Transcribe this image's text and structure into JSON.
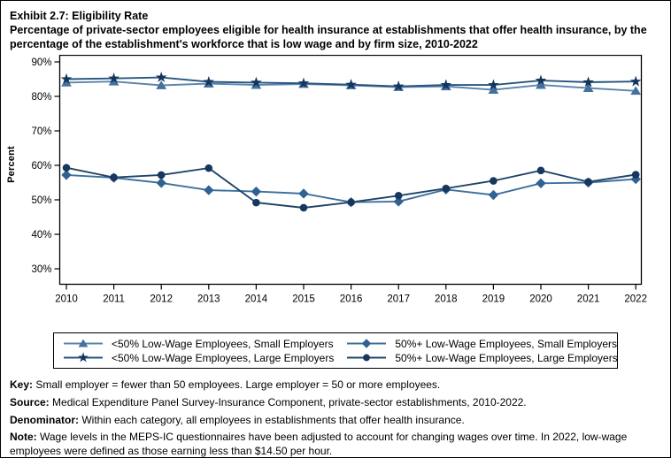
{
  "title": "Exhibit 2.7: Eligibility Rate",
  "subtitle": "Percentage of private-sector employees eligible for health insurance at establishments that offer health insurance, by the percentage of the establishment's workforce that is low wage and by firm size, 2010-2022",
  "chart_data": {
    "type": "line",
    "x": [
      2010,
      2011,
      2012,
      2013,
      2014,
      2015,
      2016,
      2017,
      2018,
      2019,
      2020,
      2021,
      2022
    ],
    "ylabel": "Percent",
    "ylim": [
      30,
      90
    ],
    "yticks": [
      90,
      80,
      70,
      60,
      50,
      40,
      30
    ],
    "ytick_suffix": "%",
    "grid": false,
    "legend_position": "bottom-box",
    "series": [
      {
        "name": "<50% Low-Wage Employees, Small Employers",
        "marker": "triangle",
        "marker_color": "#44719E",
        "line_color": "#5A84AC",
        "values": [
          84.0,
          84.3,
          83.2,
          83.7,
          83.3,
          83.6,
          83.2,
          82.7,
          82.9,
          81.9,
          83.3,
          82.4,
          81.6
        ]
      },
      {
        "name": "<50% Low-Wage Employees, Large Employers",
        "marker": "star",
        "marker_color": "#14355C",
        "line_color": "#27567F",
        "values": [
          85.0,
          85.2,
          85.5,
          84.2,
          84.0,
          83.8,
          83.4,
          82.9,
          83.3,
          83.3,
          84.6,
          84.1,
          84.3
        ]
      },
      {
        "name": "50%+ Low-Wage Employees, Small Employers",
        "marker": "diamond",
        "marker_color": "#2F6292",
        "line_color": "#3D6F9D",
        "values": [
          57.2,
          56.4,
          54.9,
          52.8,
          52.4,
          51.8,
          49.3,
          49.5,
          53.0,
          51.4,
          54.8,
          55.0,
          56.0
        ]
      },
      {
        "name": "50%+ Low-Wage Employees, Large Employers",
        "marker": "circle",
        "marker_color": "#17375E",
        "line_color": "#1F4468",
        "values": [
          59.3,
          56.5,
          57.2,
          59.2,
          49.2,
          47.7,
          49.3,
          51.2,
          53.3,
          55.5,
          58.5,
          55.2,
          57.3
        ]
      }
    ]
  },
  "legend": {
    "order": [
      0,
      2,
      1,
      3
    ]
  },
  "footnotes": [
    {
      "label": "Key:",
      "text": " Small employer = fewer than 50 employees. Large employer = 50 or more employees."
    },
    {
      "label": "Source:",
      "text": " Medical Expenditure Panel Survey-Insurance Component, private-sector establishments, 2010-2022."
    },
    {
      "label": "Denominator:",
      "text": " Within each category, all employees in establishments that offer health insurance."
    },
    {
      "label": "Note:",
      "text": " Wage levels in the MEPS-IC questionnaires have been adjusted to account for changing wages over time. In 2022, low-wage employees were defined as those earning less than $14.50 per hour."
    }
  ]
}
